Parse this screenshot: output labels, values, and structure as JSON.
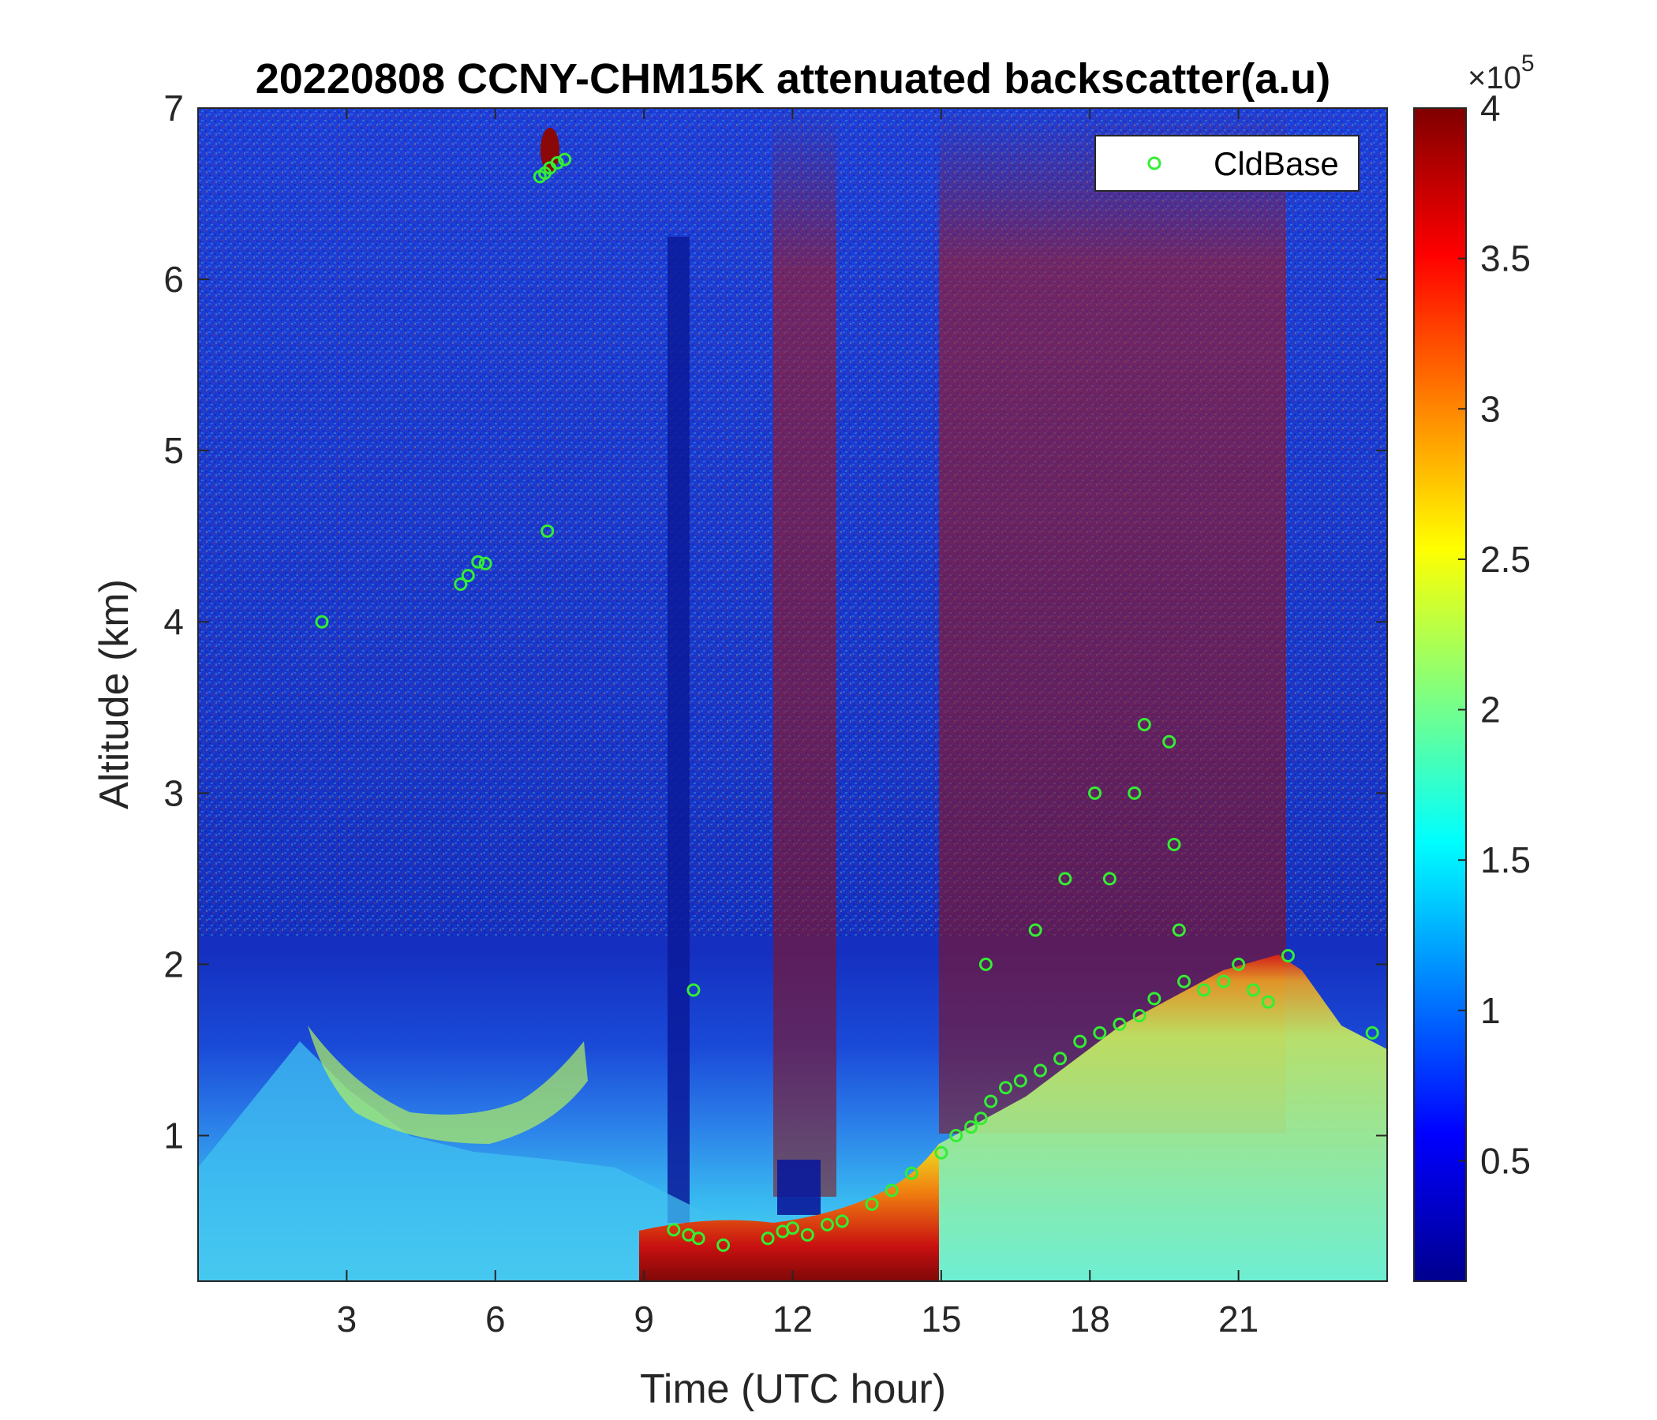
{
  "chart_data": {
    "type": "heatmap",
    "title": "20220808 CCNY-CHM15K attenuated backscatter(a.u)",
    "xlabel": "Time (UTC hour)",
    "ylabel": "Altitude (km)",
    "xlim": [
      0,
      24
    ],
    "ylim": [
      0.15,
      7
    ],
    "xticks": [
      3,
      6,
      9,
      12,
      15,
      18,
      21
    ],
    "yticks": [
      1,
      2,
      3,
      4,
      5,
      6,
      7
    ],
    "colorbar": {
      "colormap": "jet",
      "range": [
        0.1,
        4
      ],
      "ticks": [
        0.5,
        1,
        1.5,
        2,
        2.5,
        3,
        3.5,
        4
      ],
      "multiplier": "×10",
      "exponent": "5"
    },
    "legend": {
      "position": "top-right",
      "entries": [
        "CldBase"
      ]
    },
    "series": [
      {
        "name": "CldBase",
        "marker": "circle",
        "color": "#33ee33",
        "x": [
          2.5,
          5.3,
          5.45,
          5.65,
          5.8,
          6.9,
          7.0,
          7.1,
          7.25,
          7.4,
          7.05,
          9.6,
          9.9,
          10.1,
          10.0,
          10.6,
          11.5,
          11.8,
          12.0,
          12.3,
          12.7,
          13.0,
          13.6,
          14.0,
          14.4,
          15.0,
          15.3,
          15.6,
          15.8,
          16.0,
          16.3,
          16.6,
          17.0,
          17.4,
          17.8,
          18.2,
          18.6,
          19.0,
          19.3,
          19.6,
          19.7,
          19.8,
          19.9,
          20.3,
          20.7,
          21.0,
          21.3,
          21.6,
          22.0,
          18.4,
          18.9,
          19.1,
          16.9,
          17.5,
          18.1,
          15.9,
          23.7
        ],
        "y": [
          4.0,
          4.22,
          4.27,
          4.35,
          4.34,
          6.6,
          6.62,
          6.65,
          6.68,
          6.7,
          4.53,
          0.45,
          0.42,
          0.4,
          1.85,
          0.36,
          0.4,
          0.44,
          0.46,
          0.42,
          0.48,
          0.5,
          0.6,
          0.68,
          0.78,
          0.9,
          1.0,
          1.05,
          1.1,
          1.2,
          1.28,
          1.32,
          1.38,
          1.45,
          1.55,
          1.6,
          1.65,
          1.7,
          1.8,
          3.3,
          2.7,
          2.2,
          1.9,
          1.85,
          1.9,
          2.0,
          1.85,
          1.78,
          2.05,
          2.5,
          3.0,
          3.4,
          2.2,
          2.5,
          3.0,
          2.0,
          1.6
        ]
      }
    ]
  }
}
